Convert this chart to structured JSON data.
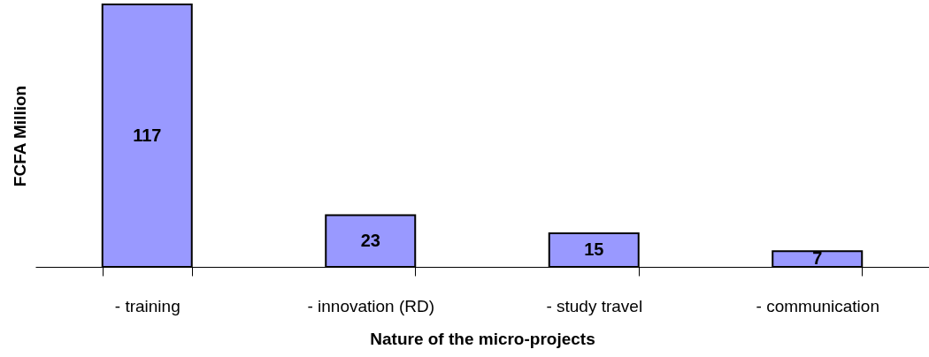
{
  "chart_data": {
    "type": "bar",
    "xlabel": "Nature of the micro-projects",
    "ylabel": "FCFA Million",
    "categories": [
      "- training",
      "- innovation (RD)",
      "- study travel",
      "- communication"
    ],
    "values": [
      117,
      23,
      15,
      7
    ],
    "color": "#9999ff",
    "data_labels": true,
    "grid": false,
    "legend": false
  }
}
